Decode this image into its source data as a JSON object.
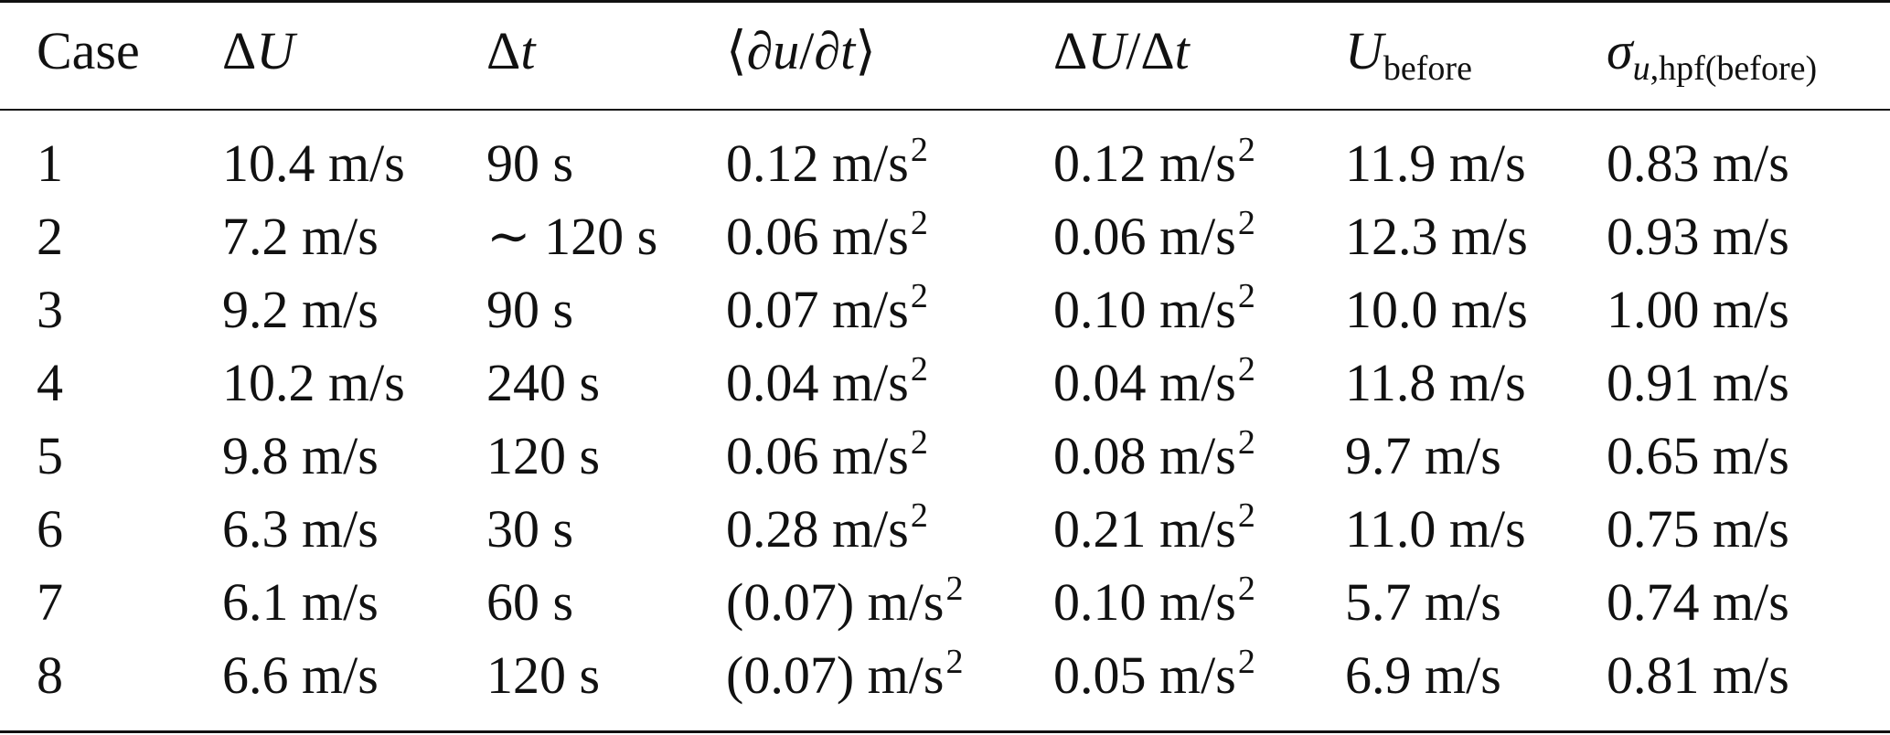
{
  "table": {
    "headers": {
      "case": "Case",
      "delta_u": {
        "prefix": "Δ",
        "var": "U"
      },
      "delta_t": {
        "prefix": "Δ",
        "var": "t"
      },
      "mean_deriv": {
        "open": "⟨∂",
        "var1": "u",
        "slash": "/∂",
        "var2": "t",
        "close": "⟩"
      },
      "ratio": {
        "p1": "Δ",
        "v1": "U",
        "mid": "/Δ",
        "v2": "t"
      },
      "u_before": {
        "var": "U",
        "sub": "before"
      },
      "sigma": {
        "var": "σ",
        "var2": "u",
        "sub": ",hpf(before)"
      }
    },
    "rows": [
      {
        "case": "1",
        "delta_u": "10.4 m/s",
        "delta_t": "90 s",
        "mean_deriv": "0.12 m/s",
        "ratio": "0.12 m/s",
        "u_before": "11.9 m/s",
        "sigma": "0.83 m/s"
      },
      {
        "case": "2",
        "delta_u": "7.2 m/s",
        "delta_t": "∼ 120 s",
        "mean_deriv": "0.06 m/s",
        "ratio": "0.06 m/s",
        "u_before": "12.3 m/s",
        "sigma": "0.93 m/s"
      },
      {
        "case": "3",
        "delta_u": "9.2 m/s",
        "delta_t": "90 s",
        "mean_deriv": "0.07 m/s",
        "ratio": "0.10 m/s",
        "u_before": "10.0 m/s",
        "sigma": "1.00 m/s"
      },
      {
        "case": "4",
        "delta_u": "10.2 m/s",
        "delta_t": "240 s",
        "mean_deriv": "0.04 m/s",
        "ratio": "0.04 m/s",
        "u_before": "11.8 m/s",
        "sigma": "0.91 m/s"
      },
      {
        "case": "5",
        "delta_u": "9.8 m/s",
        "delta_t": "120 s",
        "mean_deriv": "0.06 m/s",
        "ratio": "0.08 m/s",
        "u_before": "9.7 m/s",
        "sigma": "0.65 m/s"
      },
      {
        "case": "6",
        "delta_u": "6.3 m/s",
        "delta_t": "30 s",
        "mean_deriv": "0.28 m/s",
        "ratio": "0.21 m/s",
        "u_before": "11.0 m/s",
        "sigma": "0.75 m/s"
      },
      {
        "case": "7",
        "delta_u": "6.1 m/s",
        "delta_t": "60 s",
        "mean_deriv": "(0.07) m/s",
        "ratio": "0.10 m/s",
        "u_before": "5.7 m/s",
        "sigma": "0.74 m/s"
      },
      {
        "case": "8",
        "delta_u": "6.6 m/s",
        "delta_t": "120 s",
        "mean_deriv": "(0.07) m/s",
        "ratio": "0.05 m/s",
        "u_before": "6.9 m/s",
        "sigma": "0.81 m/s"
      }
    ],
    "accel_exponent": "2"
  }
}
